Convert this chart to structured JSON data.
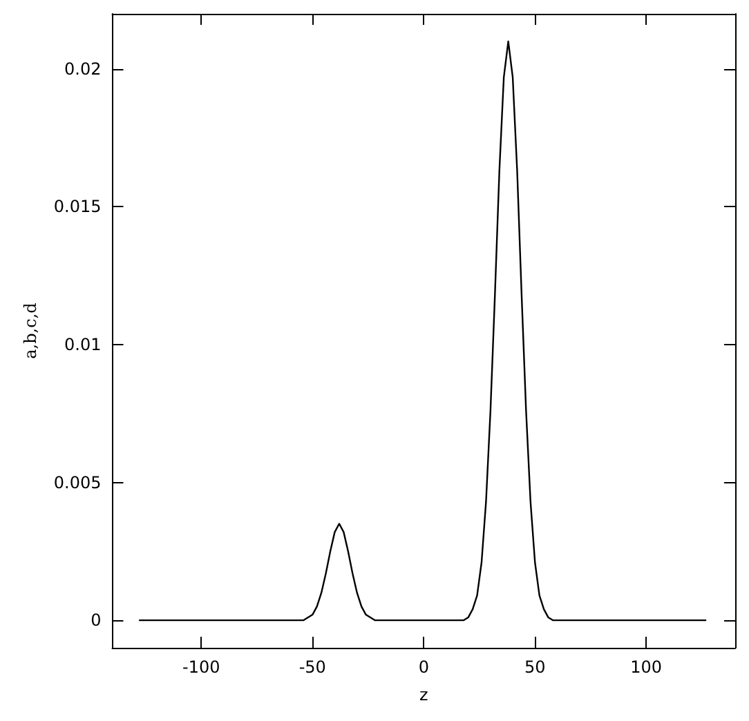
{
  "chart_data": {
    "type": "line",
    "xlabel": "z",
    "ylabel": "a,b,c,d",
    "xlim": [
      -140,
      140
    ],
    "ylim": [
      -0.001,
      0.022
    ],
    "xticks": [
      -100,
      -50,
      0,
      50,
      100
    ],
    "yticks": [
      0,
      0.005,
      0.01,
      0.015,
      0.02
    ],
    "grid": false,
    "marker": "none",
    "line_style": "solid",
    "series": [
      {
        "color": "#000000",
        "x": [
          -128,
          -54,
          -52,
          -50,
          -48,
          -46,
          -44,
          -42,
          -40,
          -38,
          -36,
          -34,
          -32,
          -30,
          -28,
          -26,
          -24,
          -22,
          18,
          20,
          22,
          24,
          26,
          28,
          30,
          32,
          34,
          36,
          38,
          40,
          42,
          44,
          46,
          48,
          50,
          52,
          54,
          56,
          58,
          127
        ],
        "values": [
          0,
          0,
          0.0001,
          0.0002,
          0.0005,
          0.001,
          0.0017,
          0.0025,
          0.0032,
          0.0035,
          0.0032,
          0.0025,
          0.0017,
          0.001,
          0.0005,
          0.0002,
          0.0001,
          0,
          0,
          0.0001,
          0.0004,
          0.0009,
          0.0021,
          0.0043,
          0.0076,
          0.0118,
          0.0163,
          0.0197,
          0.021,
          0.0197,
          0.0163,
          0.0118,
          0.0076,
          0.0043,
          0.0021,
          0.0009,
          0.0004,
          0.0001,
          0,
          0
        ]
      }
    ]
  }
}
